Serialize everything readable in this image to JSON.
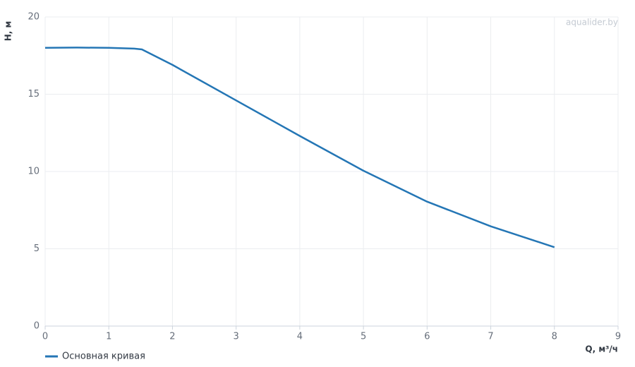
{
  "chart_data": {
    "type": "line",
    "watermark": "aqualider.by",
    "x_label": "Q, м³/ч",
    "y_label": "H, м",
    "x": [
      0,
      0.5,
      1,
      1.4,
      1.52,
      2,
      3,
      4,
      5,
      6,
      7,
      8
    ],
    "series": [
      {
        "name": "Основная кривая",
        "color": "#2476b5",
        "values": [
          18,
          18.02,
          18,
          17.95,
          17.9,
          16.9,
          14.6,
          12.3,
          10.05,
          8.05,
          6.45,
          5.1
        ]
      }
    ],
    "xlim": [
      0,
      9
    ],
    "xticks": [
      0,
      1,
      2,
      3,
      4,
      5,
      6,
      7,
      8,
      9
    ],
    "ylim": [
      0,
      20
    ],
    "yticks": [
      0,
      5,
      10,
      15,
      20
    ],
    "grid": true
  }
}
